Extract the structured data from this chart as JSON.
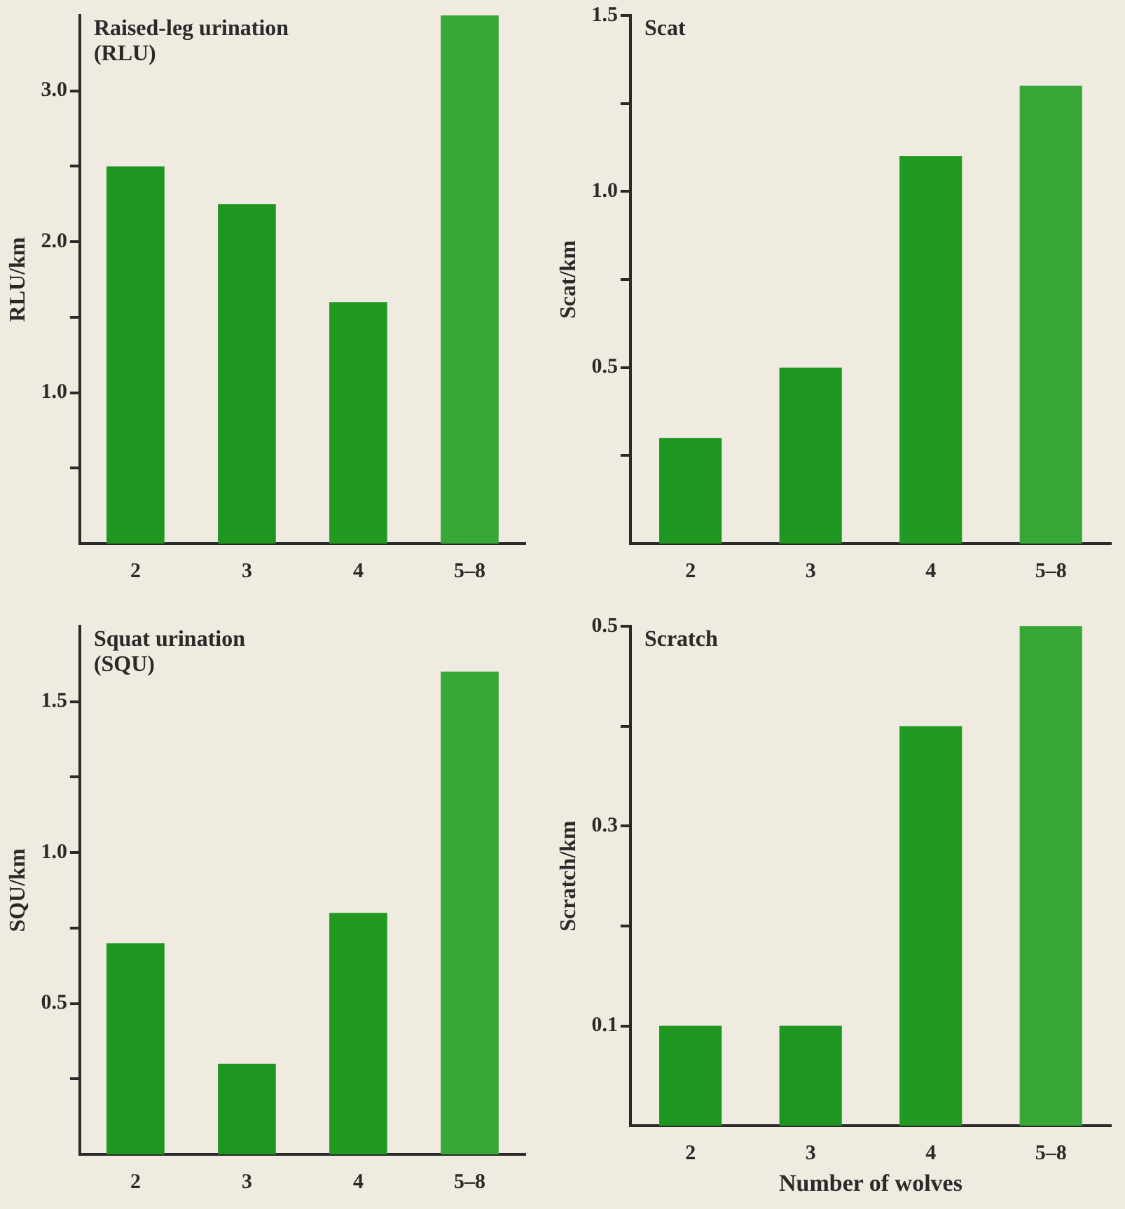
{
  "chart_data": [
    {
      "type": "bar",
      "title": "Raised-leg urination (RLU)",
      "ylabel": "RLU/km",
      "categories": [
        "2",
        "3",
        "4",
        "5–8"
      ],
      "values": [
        2.5,
        2.25,
        1.6,
        3.5
      ],
      "colors": [
        "#1f961f",
        "#1f961f",
        "#229a22",
        "#37a837"
      ],
      "ylim": [
        0,
        3.5
      ],
      "yticks": [
        {
          "value": 0.5,
          "label": null
        },
        {
          "value": 1,
          "label": "1.0"
        },
        {
          "value": 1.5,
          "label": null
        },
        {
          "value": 2,
          "label": "2.0"
        },
        {
          "value": 2.5,
          "label": null
        },
        {
          "value": 3,
          "label": "3.0"
        }
      ]
    },
    {
      "type": "bar",
      "title": "Scat",
      "ylabel": "Scat/km",
      "categories": [
        "2",
        "3",
        "4",
        "5–8"
      ],
      "values": [
        0.3,
        0.5,
        1.1,
        1.3
      ],
      "colors": [
        "#1f961f",
        "#1f961f",
        "#229a22",
        "#37a837"
      ],
      "ylim": [
        0,
        1.5
      ],
      "yticks": [
        {
          "value": 0.25,
          "label": null
        },
        0.5,
        {
          "value": 0.75,
          "label": null
        },
        {
          "value": 1,
          "label": "1.0"
        },
        {
          "value": 1.25,
          "label": null
        },
        1.5
      ]
    },
    {
      "type": "bar",
      "title": "Squat urination (SQU)",
      "ylabel": "SQU/km",
      "categories": [
        "2",
        "3",
        "4",
        "5–8"
      ],
      "values": [
        0.7,
        0.3,
        0.8,
        1.6
      ],
      "colors": [
        "#1f961f",
        "#1f961f",
        "#229a22",
        "#37a837"
      ],
      "ylim": [
        0,
        1.75
      ],
      "yticks": [
        {
          "value": 0.25,
          "label": null
        },
        0.5,
        {
          "value": 0.75,
          "label": null
        },
        {
          "value": 1,
          "label": "1.0"
        },
        {
          "value": 1.25,
          "label": null
        },
        1.5
      ]
    },
    {
      "type": "bar",
      "title": "Scratch",
      "ylabel": "Scratch/km",
      "xlabel": "Number of wolves",
      "categories": [
        "2",
        "3",
        "4",
        "5–8"
      ],
      "values": [
        0.1,
        0.1,
        0.4,
        0.5
      ],
      "colors": [
        "#1f961f",
        "#1f961f",
        "#229a22",
        "#37a837"
      ],
      "ylim": [
        0,
        0.5
      ],
      "yticks": [
        0.1,
        {
          "value": 0.2,
          "label": null
        },
        0.3,
        {
          "value": 0.4,
          "label": null
        },
        0.5
      ]
    }
  ]
}
